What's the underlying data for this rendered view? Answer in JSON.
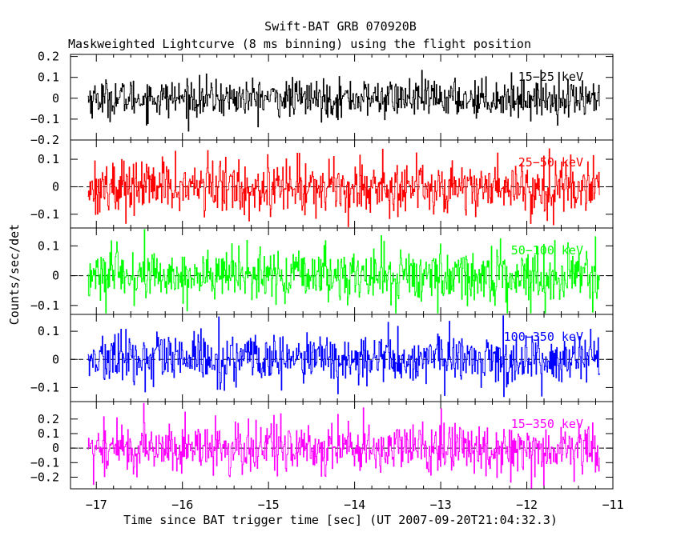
{
  "chart_data": {
    "type": "line",
    "title": "Swift-BAT GRB 070920B",
    "subtitle": "Maskweighted Lightcurve (8 ms binning) using the flight position",
    "xlabel": "Time since BAT trigger time [sec] (UT 2007-09-20T21:04:32.3)",
    "ylabel": "Counts/sec/det",
    "x_range": [
      -17.1,
      -11.15
    ],
    "xlim": [
      -17.3,
      -11.0
    ],
    "x_ticks": [
      -17,
      -16,
      -15,
      -14,
      -13,
      -12,
      -11
    ],
    "x_tick_labels": [
      "−17",
      "−16",
      "−15",
      "−14",
      "−13",
      "−12",
      "−11"
    ],
    "bin_width_sec": 0.008,
    "series": [
      {
        "name": "15-25 keV",
        "label": "15−25 keV",
        "color": "#000000",
        "ylim": [
          -0.2,
          0.21
        ],
        "yticks": [
          -0.2,
          -0.1,
          0,
          0.1,
          0.2
        ],
        "ytick_labels": [
          "−0.2",
          "−0.1",
          "0",
          "0.1",
          "0.2"
        ],
        "noise_amplitude": 0.045,
        "zero_line": false
      },
      {
        "name": "25-50 keV",
        "label": "25−50 keV",
        "color": "#ff0000",
        "ylim": [
          -0.15,
          0.17
        ],
        "yticks": [
          -0.1,
          0,
          0.1
        ],
        "ytick_labels": [
          "−0.1",
          "0",
          "0.1"
        ],
        "noise_amplitude": 0.05,
        "zero_line": true
      },
      {
        "name": "50-100 keV",
        "label": "50−100 keV",
        "color": "#00ff00",
        "ylim": [
          -0.13,
          0.16
        ],
        "yticks": [
          -0.1,
          0,
          0.1
        ],
        "ytick_labels": [
          "−0.1",
          "0",
          "0.1"
        ],
        "noise_amplitude": 0.045,
        "zero_line": true
      },
      {
        "name": "100-350 keV",
        "label": "100−350 keV",
        "color": "#0000ff",
        "ylim": [
          -0.15,
          0.16
        ],
        "yticks": [
          -0.1,
          0,
          0.1
        ],
        "ytick_labels": [
          "−0.1",
          "0",
          "0.1"
        ],
        "noise_amplitude": 0.045,
        "zero_line": true
      },
      {
        "name": "15-350 keV",
        "label": "15−350 keV",
        "color": "#ff00ff",
        "ylim": [
          -0.28,
          0.32
        ],
        "yticks": [
          -0.2,
          -0.1,
          0,
          0.1,
          0.2
        ],
        "ytick_labels": [
          "−0.2",
          "−0.1",
          "0",
          "0.1",
          "0.2"
        ],
        "noise_amplitude": 0.09,
        "zero_line": true
      }
    ]
  }
}
